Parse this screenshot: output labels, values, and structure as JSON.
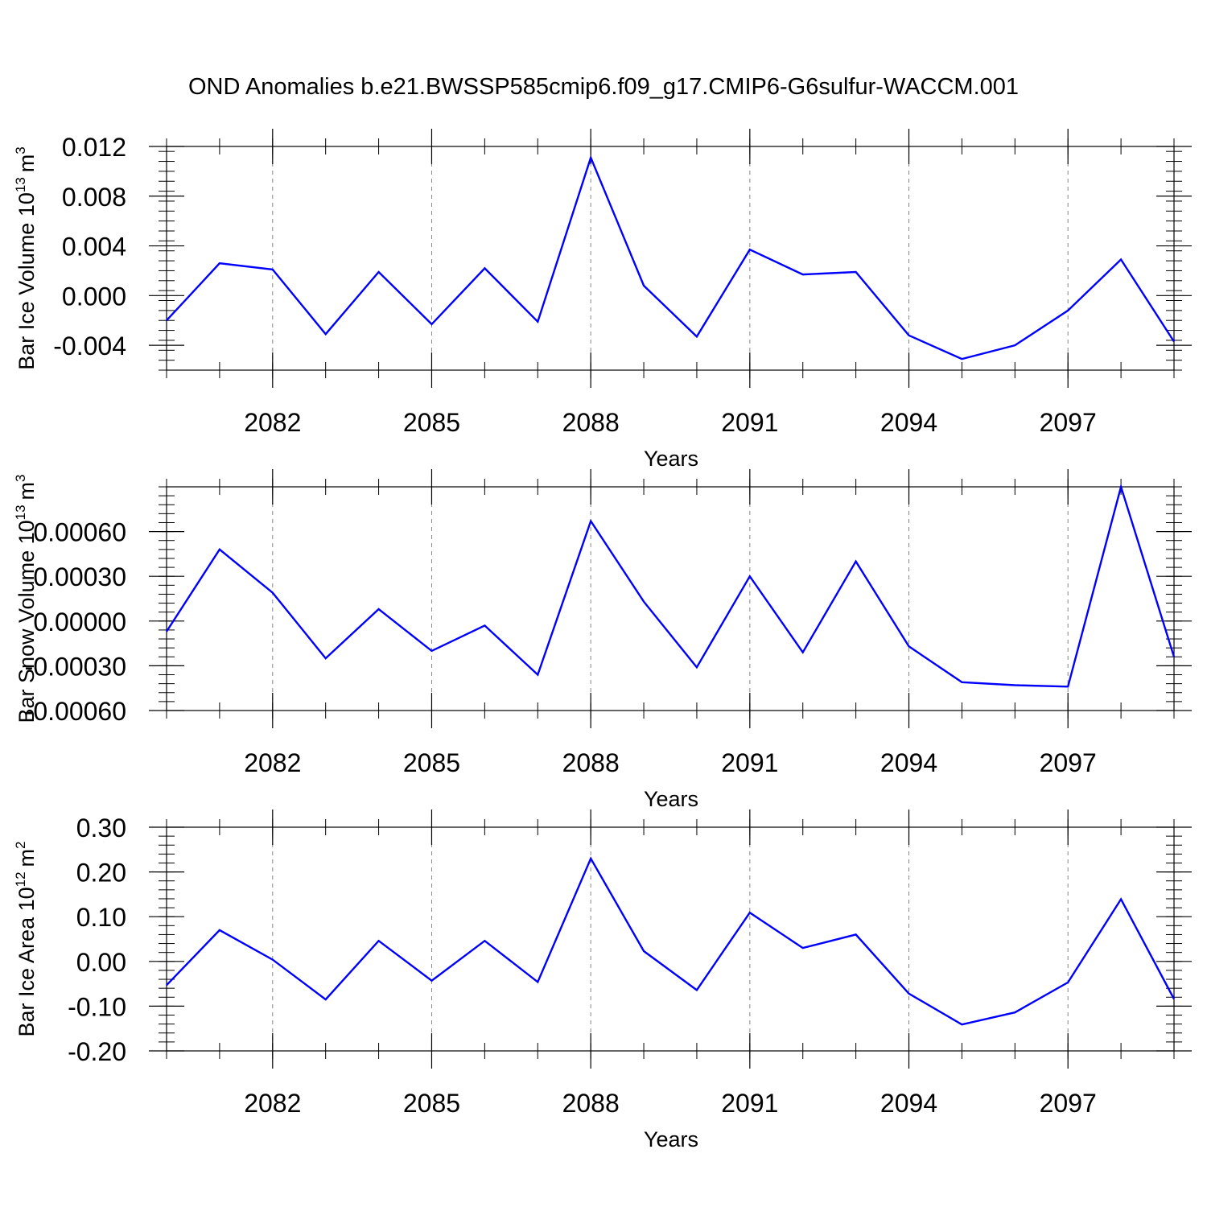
{
  "figure_title": "OND Anomalies b.e21.BWSSP585cmip6.f09_g17.CMIP6-G6sulfur-WACCM.001",
  "colors": {
    "series": "#0000ff",
    "axis": "#000000",
    "grid": "#888888"
  },
  "chart_data": [
    {
      "type": "line",
      "xlabel": "Years",
      "ylabel": "Bar Ice Volume 10",
      "ylabel_exponent": "13",
      "ylabel_unit": "m",
      "ylabel_unit_exponent": "3",
      "x": [
        2080,
        2081,
        2082,
        2083,
        2084,
        2085,
        2086,
        2087,
        2088,
        2089,
        2090,
        2091,
        2092,
        2093,
        2094,
        2095,
        2096,
        2097,
        2098,
        2099
      ],
      "values": [
        -0.002,
        0.0026,
        0.0021,
        -0.0031,
        0.0019,
        -0.0023,
        0.0022,
        -0.0021,
        0.0111,
        0.0008,
        -0.0033,
        0.0037,
        0.0017,
        0.0019,
        -0.0032,
        -0.0051,
        -0.004,
        -0.0012,
        0.0029,
        -0.0037
      ],
      "xlim": [
        2080,
        2099
      ],
      "ylim": [
        -0.006,
        0.012
      ],
      "yticks": [
        -0.004,
        0.0,
        0.004,
        0.008,
        0.012
      ],
      "ytick_labels": [
        "-0.004",
        "0.000",
        "0.004",
        "0.008",
        "0.012"
      ],
      "xticks": [
        2082,
        2085,
        2088,
        2091,
        2094,
        2097
      ],
      "xtick_labels": [
        "2082",
        "2085",
        "2088",
        "2091",
        "2094",
        "2097"
      ],
      "grid": "vertical dashed at major x ticks"
    },
    {
      "type": "line",
      "xlabel": "Years",
      "ylabel": "Bar Snow Volume 10",
      "ylabel_exponent": "13",
      "ylabel_unit": "m",
      "ylabel_unit_exponent": "3",
      "x": [
        2080,
        2081,
        2082,
        2083,
        2084,
        2085,
        2086,
        2087,
        2088,
        2089,
        2090,
        2091,
        2092,
        2093,
        2094,
        2095,
        2096,
        2097,
        2098,
        2099
      ],
      "values": [
        -7e-05,
        0.00048,
        0.00019,
        -0.00025,
        8e-05,
        -0.0002,
        -3e-05,
        -0.00036,
        0.00067,
        0.00013,
        -0.00031,
        0.0003,
        -0.00021,
        0.0004,
        -0.00017,
        -0.00041,
        -0.00043,
        -0.00044,
        0.0009,
        -0.00024
      ],
      "xlim": [
        2080,
        2099
      ],
      "ylim": [
        -0.0006,
        0.0009
      ],
      "yticks": [
        -0.0006,
        -0.0003,
        0.0,
        0.0003,
        0.0006
      ],
      "ytick_labels": [
        "-0.00060",
        "-0.00030",
        "0.00000",
        "0.00030",
        "0.00060"
      ],
      "xticks": [
        2082,
        2085,
        2088,
        2091,
        2094,
        2097
      ],
      "xtick_labels": [
        "2082",
        "2085",
        "2088",
        "2091",
        "2094",
        "2097"
      ],
      "grid": "vertical dashed at major x ticks"
    },
    {
      "type": "line",
      "xlabel": "Years",
      "ylabel": "Bar Ice Area 10",
      "ylabel_exponent": "12",
      "ylabel_unit": "m",
      "ylabel_unit_exponent": "2",
      "x": [
        2080,
        2081,
        2082,
        2083,
        2084,
        2085,
        2086,
        2087,
        2088,
        2089,
        2090,
        2091,
        2092,
        2093,
        2094,
        2095,
        2096,
        2097,
        2098,
        2099
      ],
      "values": [
        -0.053,
        0.07,
        0.004,
        -0.085,
        0.046,
        -0.043,
        0.046,
        -0.046,
        0.23,
        0.023,
        -0.064,
        0.109,
        0.03,
        0.06,
        -0.072,
        -0.141,
        -0.114,
        -0.047,
        0.139,
        -0.084
      ],
      "xlim": [
        2080,
        2099
      ],
      "ylim": [
        -0.2,
        0.3
      ],
      "yticks": [
        -0.2,
        -0.1,
        0.0,
        0.1,
        0.2,
        0.3
      ],
      "ytick_labels": [
        "-0.20",
        "-0.10",
        "0.00",
        "0.10",
        "0.20",
        "0.30"
      ],
      "xticks": [
        2082,
        2085,
        2088,
        2091,
        2094,
        2097
      ],
      "xtick_labels": [
        "2082",
        "2085",
        "2088",
        "2091",
        "2094",
        "2097"
      ],
      "grid": "vertical dashed at major x ticks"
    }
  ]
}
